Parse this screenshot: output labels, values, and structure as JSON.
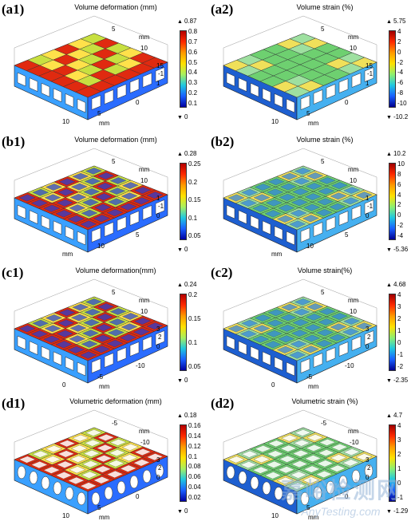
{
  "panels": [
    {
      "label": "(a1)",
      "title": "Volume deformation (mm)",
      "max": "0.87",
      "min": "0",
      "ticks": [
        "0.8",
        "0.7",
        "0.6",
        "0.5",
        "0.4",
        "0.3",
        "0.2",
        "0.1"
      ],
      "kind": "def",
      "axes": [
        "5",
        "mm",
        "10",
        "15",
        "-1",
        "1",
        "0",
        "5",
        "10",
        "mm"
      ]
    },
    {
      "label": "(a2)",
      "title": "Volume strain (%)",
      "max": "5.75",
      "min": "-10.2",
      "ticks": [
        "4",
        "2",
        "0",
        "-2",
        "-4",
        "-6",
        "-8",
        "-10"
      ],
      "kind": "str",
      "axes": [
        "5",
        "mm",
        "10",
        "15",
        "-1",
        "1",
        "0",
        "5",
        "10",
        "mm"
      ]
    },
    {
      "label": "(b1)",
      "title": "Volume deformation (mm)",
      "max": "0.28",
      "min": "0",
      "ticks": [
        "0.25",
        "0.2",
        "0.15",
        "0.1",
        "0.05"
      ],
      "kind": "def",
      "axes": [
        "5",
        "mm",
        "10",
        "1",
        "-1",
        "0",
        "5",
        "10",
        "mm"
      ]
    },
    {
      "label": "(b2)",
      "title": "Volume strain (%)",
      "max": "10.2",
      "min": "-5.36",
      "ticks": [
        "10",
        "8",
        "6",
        "4",
        "2",
        "0",
        "-2",
        "-4"
      ],
      "kind": "str",
      "axes": [
        "5",
        "mm",
        "10",
        "1",
        "-1",
        "0",
        "5",
        "10",
        "mm"
      ]
    },
    {
      "label": "(c1)",
      "title": "Volume deformation(mm)",
      "max": "0.24",
      "min": "0",
      "ticks": [
        "0.2",
        "0.15",
        "0.1",
        "0.05"
      ],
      "kind": "def",
      "axes": [
        "5",
        "mm",
        "10",
        "3",
        "2",
        "0",
        "-10",
        "-5",
        "0",
        "mm"
      ]
    },
    {
      "label": "(c2)",
      "title": "Volume strain(%)",
      "max": "4.68",
      "min": "-2.35",
      "ticks": [
        "4",
        "3",
        "2",
        "1",
        "0",
        "-1",
        "-2"
      ],
      "kind": "str",
      "axes": [
        "5",
        "mm",
        "10",
        "3",
        "2",
        "0",
        "-10",
        "-5",
        "0",
        "mm"
      ]
    },
    {
      "label": "(d1)",
      "title": "Volumetric deformation (mm)",
      "max": "0.18",
      "min": "0",
      "ticks": [
        "0.16",
        "0.14",
        "0.12",
        "0.1",
        "0.08",
        "0.06",
        "0.04",
        "0.02"
      ],
      "kind": "def",
      "axes": [
        "-5",
        "mm",
        "-10",
        "3",
        "2",
        "0",
        "0",
        "5",
        "10",
        "mm"
      ]
    },
    {
      "label": "(d2)",
      "title": "Volumetric strain (%)",
      "max": "4.7",
      "min": "-1.29",
      "ticks": [
        "4",
        "3",
        "2",
        "1",
        "0",
        "-1"
      ],
      "kind": "str",
      "axes": [
        "-5",
        "mm",
        "-10",
        "3",
        "2",
        "0",
        "0",
        "5",
        "10",
        "mm"
      ]
    }
  ],
  "watermark": {
    "chinese": "嘉峪检测网",
    "english": "AnyTesting.com"
  }
}
